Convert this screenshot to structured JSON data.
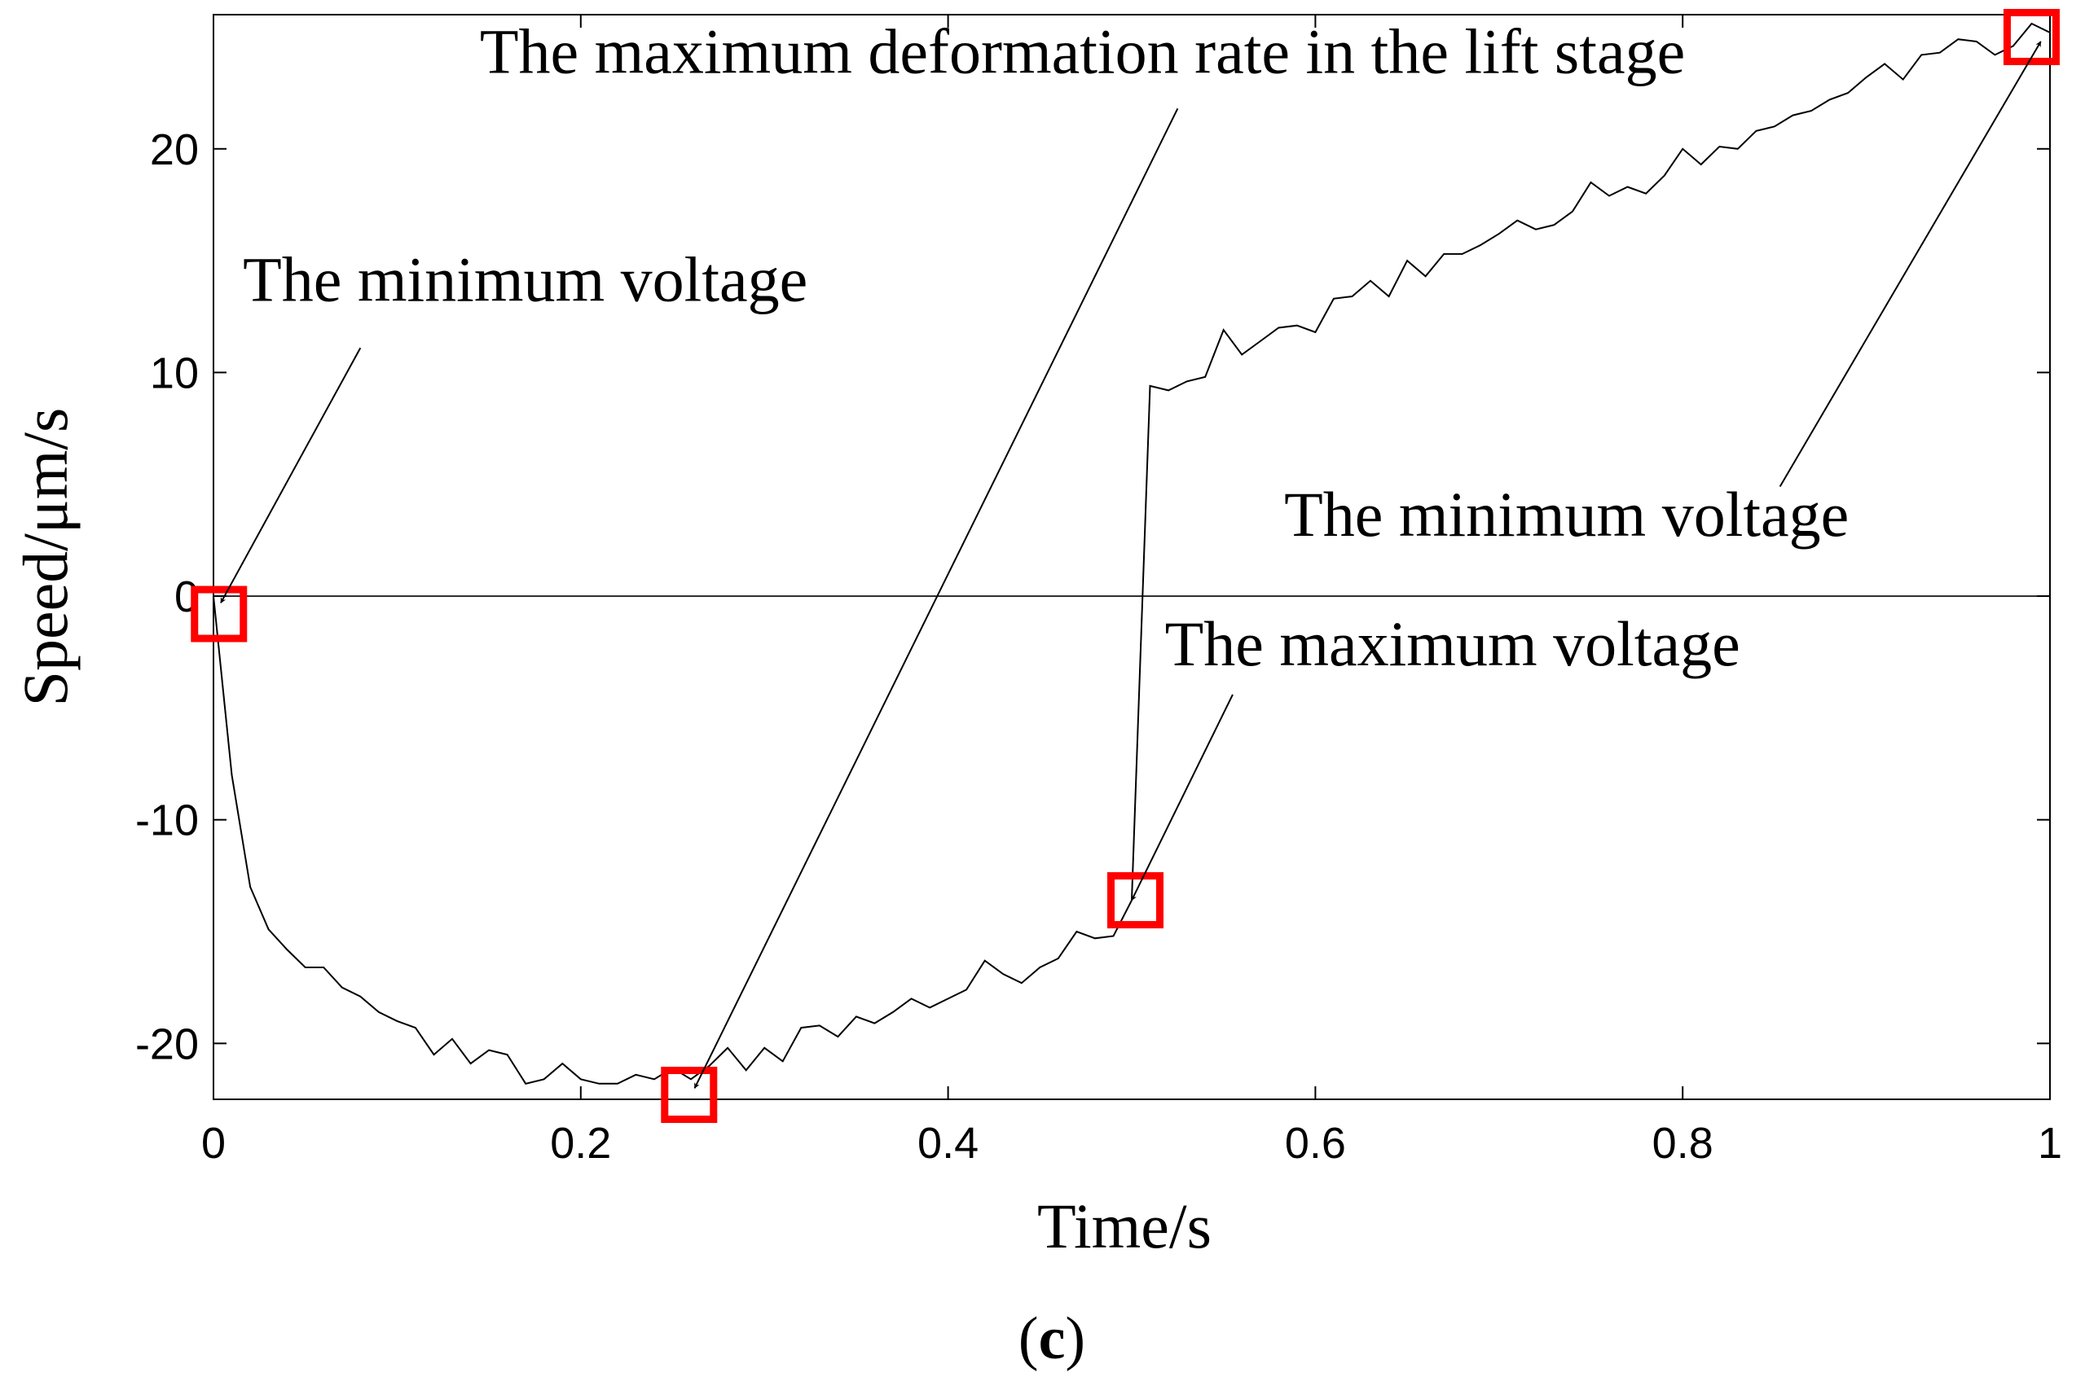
{
  "chart_data": {
    "type": "line",
    "panel_label": {
      "open": "(",
      "letter": "c",
      "close": ")"
    },
    "xlabel": "Time/s",
    "ylabel": "Speed/μm/s",
    "xlim": [
      0,
      1
    ],
    "ylim": [
      -22.5,
      26
    ],
    "x_ticks": [
      0,
      0.2,
      0.4,
      0.6,
      0.8,
      1
    ],
    "x_tick_labels": [
      "0",
      "0.2",
      "0.4",
      "0.6",
      "0.8",
      "1"
    ],
    "y_ticks": [
      -20,
      -10,
      0,
      10,
      20
    ],
    "y_tick_labels": [
      "-20",
      "-10",
      "0",
      "10",
      "20"
    ],
    "zero_line": 0,
    "series": [
      {
        "name": "speed",
        "color": "#000000",
        "points": [
          [
            0.0,
            0.0
          ],
          [
            0.01,
            -8.0
          ],
          [
            0.02,
            -13.0
          ],
          [
            0.03,
            -14.9
          ],
          [
            0.04,
            -15.8
          ],
          [
            0.05,
            -16.6
          ],
          [
            0.06,
            -16.6
          ],
          [
            0.07,
            -17.5
          ],
          [
            0.08,
            -17.9
          ],
          [
            0.09,
            -18.6
          ],
          [
            0.1,
            -19.0
          ],
          [
            0.11,
            -19.3
          ],
          [
            0.12,
            -20.5
          ],
          [
            0.13,
            -19.8
          ],
          [
            0.14,
            -20.9
          ],
          [
            0.15,
            -20.3
          ],
          [
            0.16,
            -20.5
          ],
          [
            0.17,
            -21.8
          ],
          [
            0.18,
            -21.6
          ],
          [
            0.19,
            -20.9
          ],
          [
            0.2,
            -21.6
          ],
          [
            0.21,
            -21.8
          ],
          [
            0.22,
            -21.8
          ],
          [
            0.23,
            -21.4
          ],
          [
            0.24,
            -21.6
          ],
          [
            0.25,
            -21.1
          ],
          [
            0.26,
            -21.6
          ],
          [
            0.27,
            -21.0
          ],
          [
            0.28,
            -20.2
          ],
          [
            0.29,
            -21.2
          ],
          [
            0.3,
            -20.2
          ],
          [
            0.31,
            -20.8
          ],
          [
            0.32,
            -19.3
          ],
          [
            0.33,
            -19.2
          ],
          [
            0.34,
            -19.7
          ],
          [
            0.35,
            -18.8
          ],
          [
            0.36,
            -19.1
          ],
          [
            0.37,
            -18.6
          ],
          [
            0.38,
            -18.0
          ],
          [
            0.39,
            -18.4
          ],
          [
            0.4,
            -18.0
          ],
          [
            0.41,
            -17.6
          ],
          [
            0.42,
            -16.3
          ],
          [
            0.43,
            -16.9
          ],
          [
            0.44,
            -17.3
          ],
          [
            0.45,
            -16.6
          ],
          [
            0.46,
            -16.2
          ],
          [
            0.47,
            -15.0
          ],
          [
            0.48,
            -15.3
          ],
          [
            0.49,
            -15.2
          ],
          [
            0.5,
            -13.6
          ],
          [
            0.51,
            9.4
          ],
          [
            0.52,
            9.2
          ],
          [
            0.53,
            9.6
          ],
          [
            0.54,
            9.8
          ],
          [
            0.55,
            11.9
          ],
          [
            0.56,
            10.8
          ],
          [
            0.57,
            11.4
          ],
          [
            0.58,
            12.0
          ],
          [
            0.59,
            12.1
          ],
          [
            0.6,
            11.8
          ],
          [
            0.61,
            13.3
          ],
          [
            0.62,
            13.4
          ],
          [
            0.63,
            14.1
          ],
          [
            0.64,
            13.4
          ],
          [
            0.65,
            15.0
          ],
          [
            0.66,
            14.3
          ],
          [
            0.67,
            15.3
          ],
          [
            0.68,
            15.3
          ],
          [
            0.69,
            15.7
          ],
          [
            0.7,
            16.2
          ],
          [
            0.71,
            16.8
          ],
          [
            0.72,
            16.4
          ],
          [
            0.73,
            16.6
          ],
          [
            0.74,
            17.2
          ],
          [
            0.75,
            18.5
          ],
          [
            0.76,
            17.9
          ],
          [
            0.77,
            18.3
          ],
          [
            0.78,
            18.0
          ],
          [
            0.79,
            18.8
          ],
          [
            0.8,
            20.0
          ],
          [
            0.81,
            19.3
          ],
          [
            0.82,
            20.1
          ],
          [
            0.83,
            20.0
          ],
          [
            0.84,
            20.8
          ],
          [
            0.85,
            21.0
          ],
          [
            0.86,
            21.5
          ],
          [
            0.87,
            21.7
          ],
          [
            0.88,
            22.2
          ],
          [
            0.89,
            22.5
          ],
          [
            0.9,
            23.2
          ],
          [
            0.91,
            23.8
          ],
          [
            0.92,
            23.1
          ],
          [
            0.93,
            24.2
          ],
          [
            0.94,
            24.3
          ],
          [
            0.95,
            24.9
          ],
          [
            0.96,
            24.8
          ],
          [
            0.97,
            24.2
          ],
          [
            0.98,
            24.6
          ],
          [
            0.99,
            25.6
          ],
          [
            1.0,
            25.2
          ]
        ]
      }
    ],
    "markers": [
      {
        "name": "marker-start",
        "x": 0.003,
        "y": -0.8,
        "color": "#ff0000"
      },
      {
        "name": "marker-min-deformation",
        "x": 0.259,
        "y": -22.3,
        "color": "#ff0000"
      },
      {
        "name": "marker-max-voltage",
        "x": 0.502,
        "y": -13.6,
        "color": "#ff0000"
      },
      {
        "name": "marker-end",
        "x": 0.99,
        "y": 25.0,
        "color": "#ff0000"
      }
    ],
    "annotations": [
      {
        "name": "annotation-min-voltage-left",
        "text": "The minimum voltage",
        "text_x": 0.016,
        "text_y": 13.2,
        "from": [
          0.08,
          11.1
        ],
        "to": [
          0.004,
          -0.3
        ]
      },
      {
        "name": "annotation-max-deformation-rate",
        "text": "The maximum deformation rate in the lift stage",
        "text_x": 0.145,
        "text_y": 23.4,
        "from": [
          0.525,
          21.8
        ],
        "to": [
          0.262,
          -22.0
        ]
      },
      {
        "name": "annotation-max-voltage",
        "text": "The maximum voltage",
        "text_x": 0.518,
        "text_y": -3.1,
        "from": [
          0.555,
          -4.4
        ],
        "to": [
          0.5,
          -13.6
        ]
      },
      {
        "name": "annotation-min-voltage-right",
        "text": "The minimum voltage",
        "text_x": 0.583,
        "text_y": 2.7,
        "from": [
          0.853,
          4.9
        ],
        "to": [
          0.995,
          24.8
        ]
      }
    ]
  }
}
